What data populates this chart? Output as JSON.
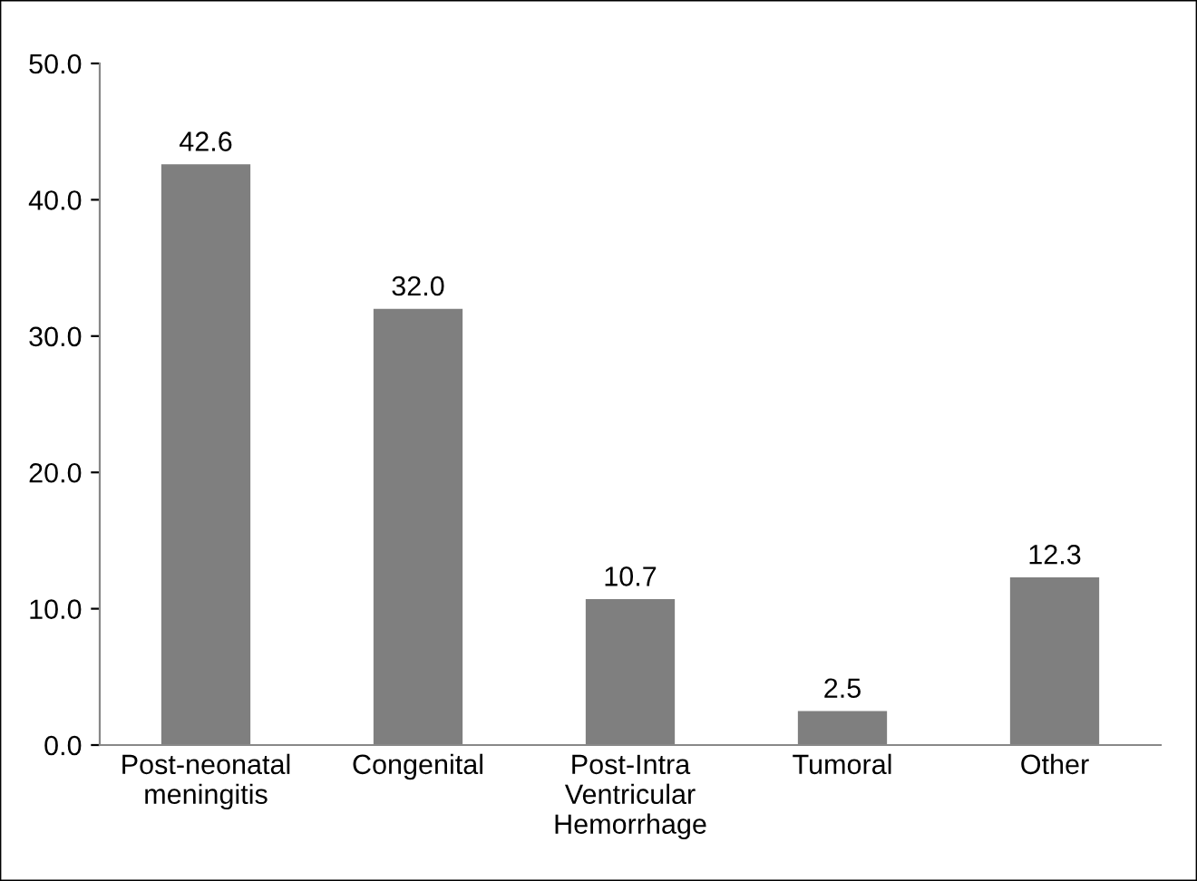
{
  "chart_data": {
    "type": "bar",
    "categories": [
      "Post-neonatal\nmeningitis",
      "Congenital",
      "Post-Intra\nVentricular\nHemorrhage",
      "Tumoral",
      "Other"
    ],
    "values": [
      42.6,
      32.0,
      10.7,
      2.5,
      12.3
    ],
    "value_labels": [
      "42.6",
      "32.0",
      "10.7",
      "2.5",
      "12.3"
    ],
    "color": "#7f7f7f",
    "ylim": [
      0,
      50
    ],
    "yticks": [
      {
        "value": 0,
        "label": "0.0"
      },
      {
        "value": 10,
        "label": "10.0"
      },
      {
        "value": 20,
        "label": "20.0"
      },
      {
        "value": 30,
        "label": "30.0"
      },
      {
        "value": 40,
        "label": "40.0"
      },
      {
        "value": 50,
        "label": "50.0"
      }
    ],
    "grid": false,
    "legend": false
  }
}
